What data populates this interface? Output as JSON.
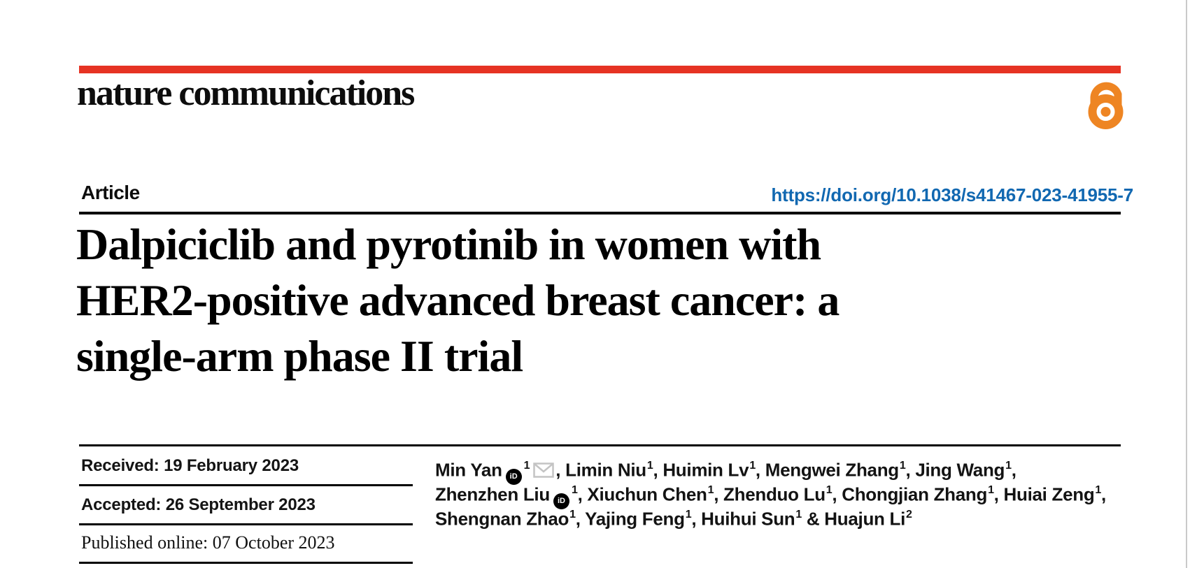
{
  "colors": {
    "brand_red": "#e63323",
    "open_access_orange": "#ee8523",
    "link_blue": "#1168b1"
  },
  "masthead": {
    "journal": "nature communications",
    "open_access_icon": "open-access-lock-icon"
  },
  "article": {
    "label": "Article",
    "doi": "https://doi.org/10.1038/s41467-023-41955-7",
    "title_lines": [
      "Dalpiciclib and pyrotinib in women with",
      "HER2-positive advanced breast cancer: a",
      "single-arm phase II trial"
    ]
  },
  "dates": {
    "received_label": "Received:",
    "received_value": "19 February 2023",
    "accepted_label": "Accepted:",
    "accepted_value": "26 September 2023",
    "published_label": "Published online:",
    "published_value": "07 October 2023"
  },
  "authors": {
    "orcid_icon": "orcid-id-icon",
    "email_icon": "email-envelope-icon",
    "lines": [
      [
        {
          "t": "text",
          "v": "Min Yan"
        },
        {
          "t": "orcid"
        },
        {
          "t": "sup",
          "v": "1"
        },
        {
          "t": "mail"
        },
        {
          "t": "text",
          "v": ", Limin Niu"
        },
        {
          "t": "sup",
          "v": "1"
        },
        {
          "t": "text",
          "v": ", Huimin Lv"
        },
        {
          "t": "sup",
          "v": "1"
        },
        {
          "t": "text",
          "v": ", Mengwei Zhang"
        },
        {
          "t": "sup",
          "v": "1"
        },
        {
          "t": "text",
          "v": ", Jing Wang"
        },
        {
          "t": "sup",
          "v": "1"
        },
        {
          "t": "text",
          "v": ","
        }
      ],
      [
        {
          "t": "text",
          "v": "Zhenzhen Liu"
        },
        {
          "t": "orcid"
        },
        {
          "t": "sup",
          "v": "1"
        },
        {
          "t": "text",
          "v": ", Xiuchun Chen"
        },
        {
          "t": "sup",
          "v": "1"
        },
        {
          "t": "text",
          "v": ", Zhenduo Lu"
        },
        {
          "t": "sup",
          "v": "1"
        },
        {
          "t": "text",
          "v": ", Chongjian Zhang"
        },
        {
          "t": "sup",
          "v": "1"
        },
        {
          "t": "text",
          "v": ", Huiai Zeng"
        },
        {
          "t": "sup",
          "v": "1"
        },
        {
          "t": "text",
          "v": ","
        }
      ],
      [
        {
          "t": "text",
          "v": "Shengnan Zhao"
        },
        {
          "t": "sup",
          "v": "1"
        },
        {
          "t": "text",
          "v": ", Yajing Feng"
        },
        {
          "t": "sup",
          "v": "1"
        },
        {
          "t": "text",
          "v": ", Huihui Sun"
        },
        {
          "t": "sup",
          "v": "1"
        },
        {
          "t": "text",
          "v": " & Huajun Li"
        },
        {
          "t": "sup",
          "v": "2"
        }
      ]
    ]
  }
}
